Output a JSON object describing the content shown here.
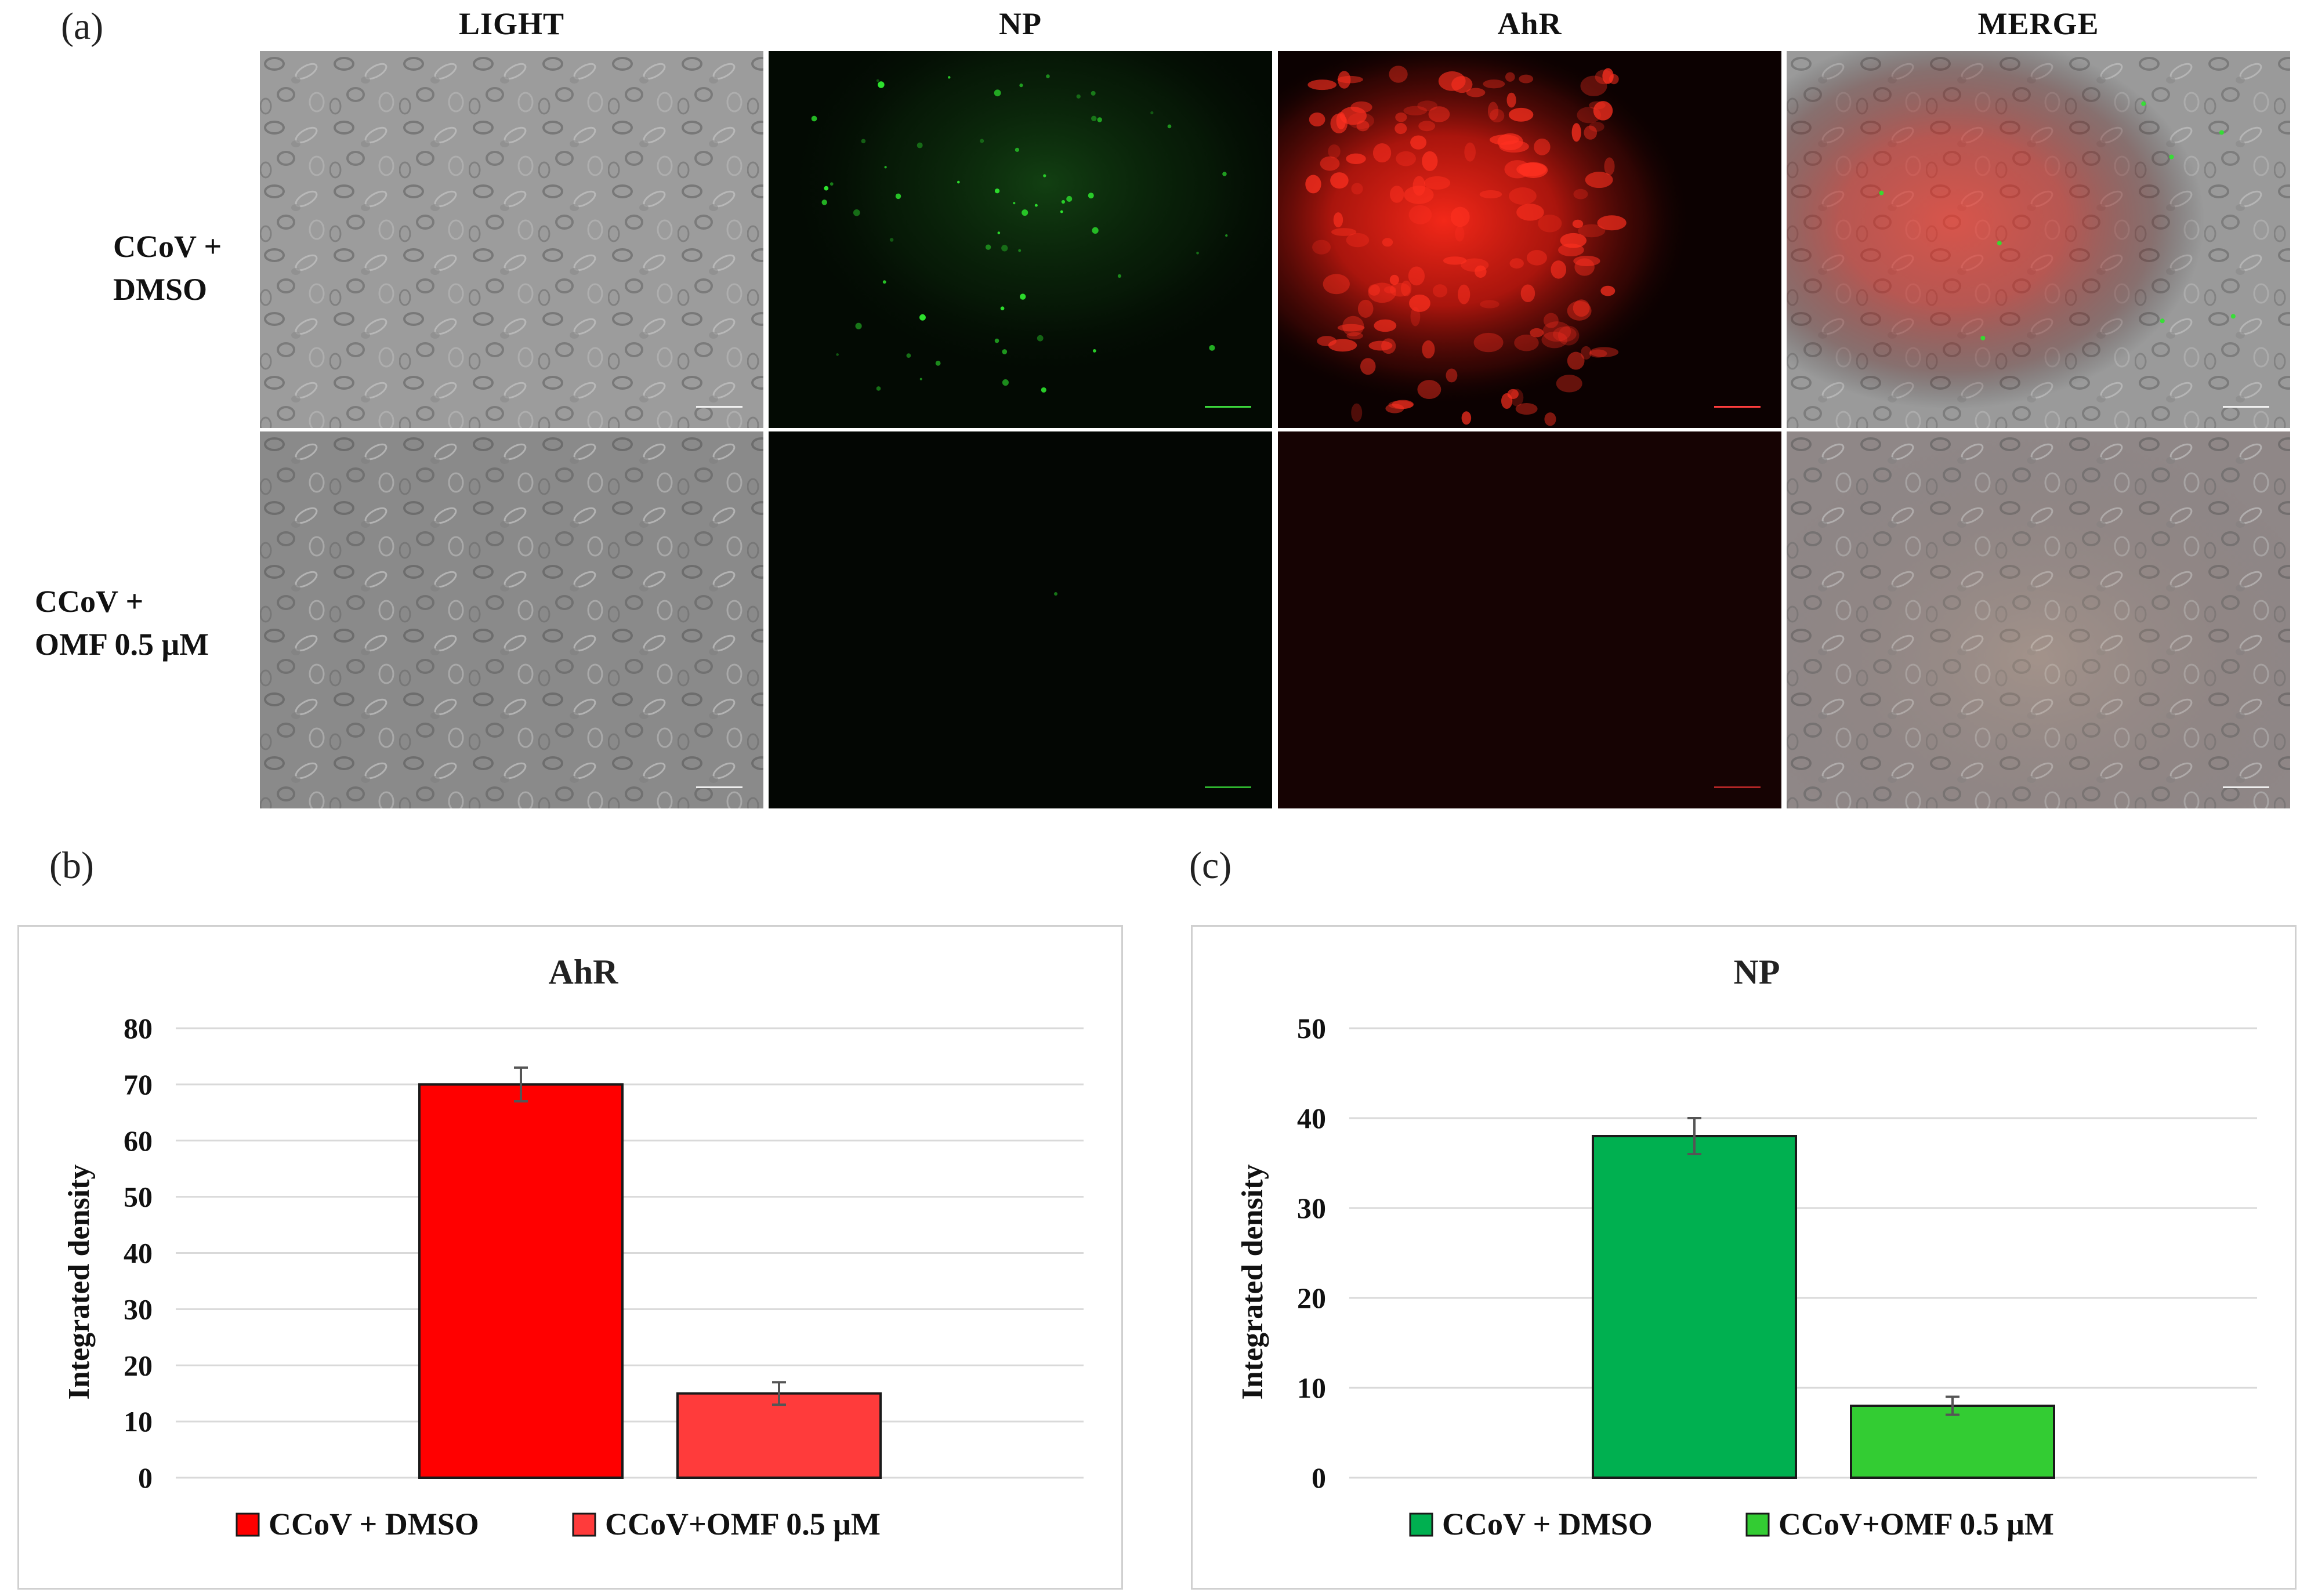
{
  "figure": {
    "panel_labels": [
      "(a)",
      "(b)",
      "(c)"
    ],
    "columns": [
      "LIGHT",
      "NP",
      "AhR",
      "MERGE"
    ],
    "rows": [
      {
        "line1": "CCoV +",
        "line2": "DMSO"
      },
      {
        "line1": "CCoV +",
        "line2": "OMF 0.5 μM"
      }
    ],
    "channel_colors": {
      "light": "#8f8f8f",
      "np": "#1fd02a",
      "ahr": "#ff2010"
    }
  },
  "chart_data": [
    {
      "type": "bar",
      "title": "AhR",
      "ylabel": "Integrated density",
      "xlabel": "",
      "ylim": [
        0,
        80
      ],
      "yticks": [
        0,
        10,
        20,
        30,
        40,
        50,
        60,
        70,
        80
      ],
      "grid": true,
      "legend_position": "bottom",
      "series": [
        {
          "name": "CCoV + DMSO",
          "value": 70,
          "error": 3,
          "color": "#ff0000"
        },
        {
          "name": "CCoV+OMF 0.5 μM",
          "value": 15,
          "error": 2,
          "color": "#ff3b3b"
        }
      ]
    },
    {
      "type": "bar",
      "title": "NP",
      "ylabel": "Integrated density",
      "xlabel": "",
      "ylim": [
        0,
        50
      ],
      "yticks": [
        0,
        10,
        20,
        30,
        40,
        50
      ],
      "grid": true,
      "legend_position": "bottom",
      "series": [
        {
          "name": "CCoV + DMSO",
          "value": 38,
          "error": 2,
          "color": "#00b050"
        },
        {
          "name": "CCoV+OMF 0.5 μM",
          "value": 8,
          "error": 1,
          "color": "#33cc33"
        }
      ]
    }
  ]
}
